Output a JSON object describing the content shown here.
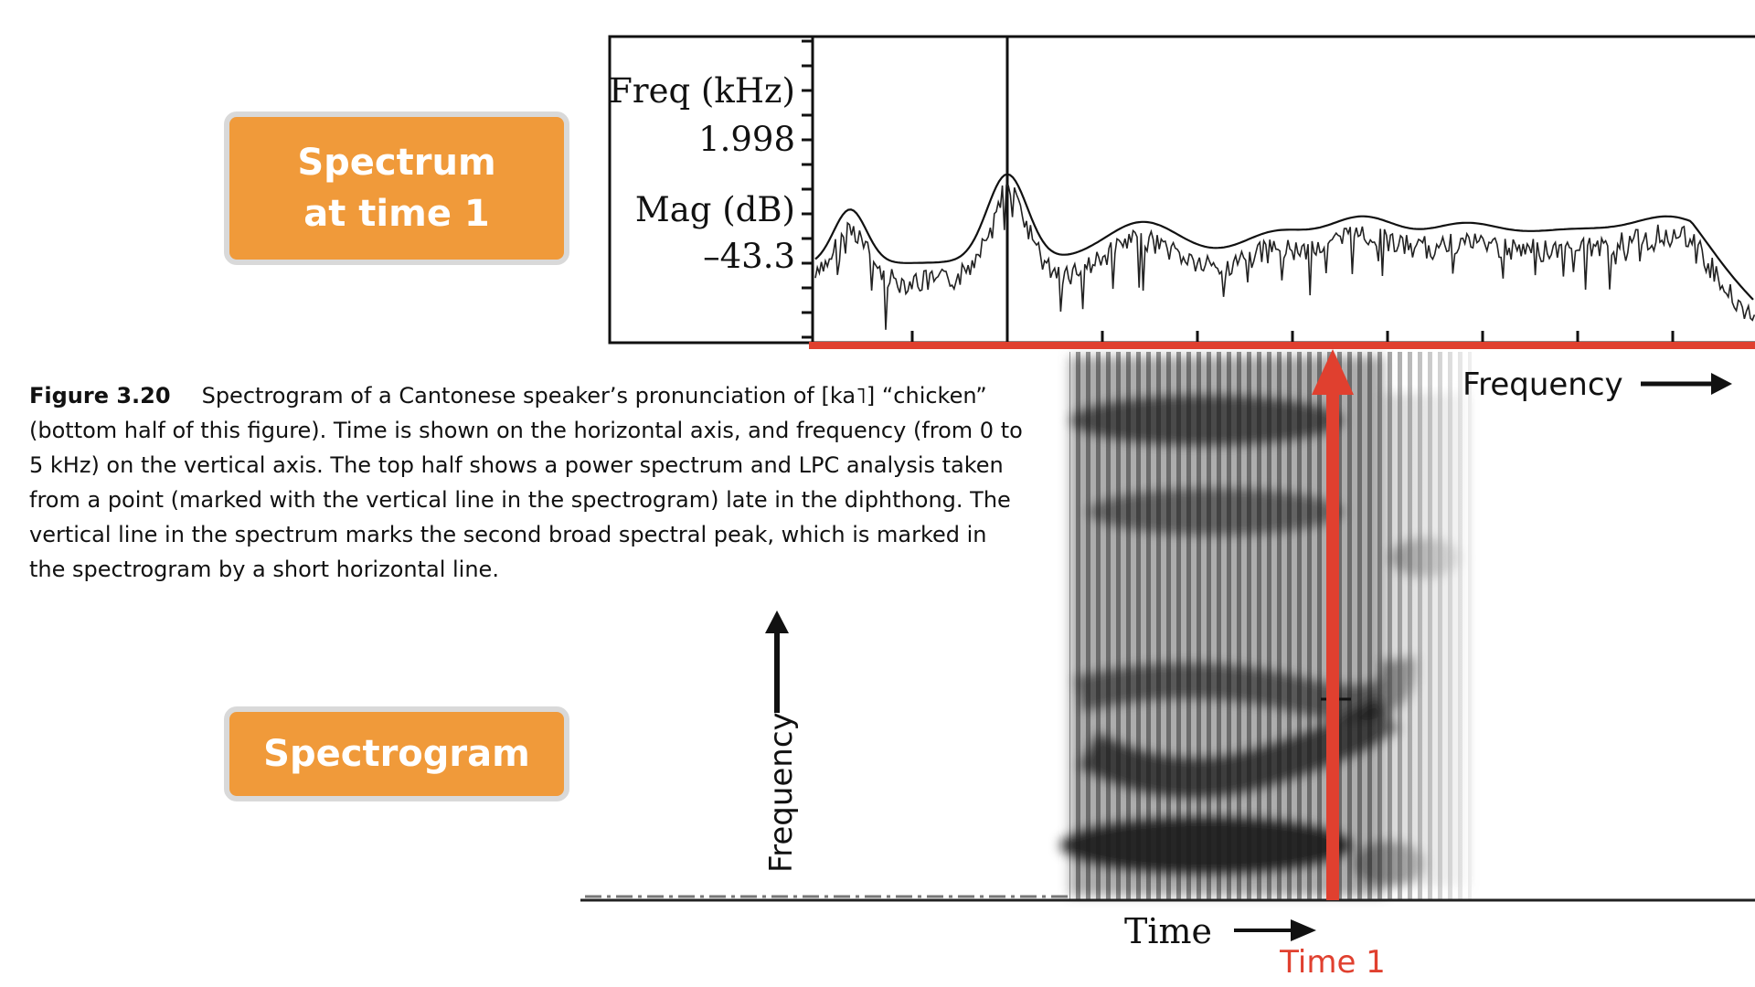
{
  "callouts": {
    "spectrum_line1": "Spectrum",
    "spectrum_line2": "at time 1",
    "spectrogram": "Spectrogram"
  },
  "caption": {
    "figure_number": "Figure 3.20",
    "lines": [
      "Spectrogram of a Cantonese speaker’s pronunciation of [ka˥] “chicken”",
      "(bottom half of this figure). Time is shown on the horizontal axis, and frequency (from 0 to",
      "5 kHz) on the vertical axis. The top half shows a power spectrum and LPC analysis taken",
      "from a point (marked with the vertical line in the spectrogram) late in the diphthong. The",
      "vertical line in the spectrum marks the second broad spectral peak, which is marked in",
      "the spectrogram by a short horizontal line."
    ]
  },
  "spectrum": {
    "freq_label": "Freq (kHz)",
    "freq_value": "1.998",
    "mag_label": "Mag (dB)",
    "mag_value": "–43.3"
  },
  "annotations": {
    "frequency_horizontal": "Frequency",
    "frequency_vertical": "Frequency",
    "time_label": "Time",
    "time1_label": "Time 1"
  },
  "colors": {
    "callout_fill": "#f09a3a",
    "marker_red": "#e0402f",
    "ink": "#111111"
  }
}
